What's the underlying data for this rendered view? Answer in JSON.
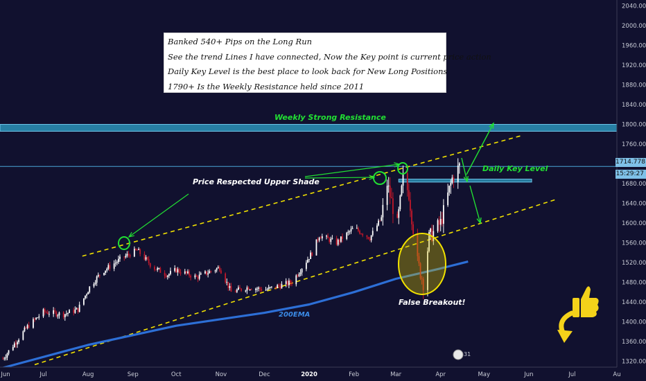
{
  "chart_data": {
    "type": "candlestick",
    "title": "",
    "y_axis": {
      "ticks": [
        1320,
        1360,
        1400,
        1440,
        1480,
        1520,
        1560,
        1600,
        1640,
        1680,
        1720,
        1760,
        1800,
        1840,
        1880,
        1920,
        1960,
        2000,
        2040
      ],
      "tick_labels": [
        "1320.000",
        "1360.000",
        "1400.000",
        "1440.000",
        "1480.000",
        "1520.000",
        "1560.000",
        "1600.000",
        "1640.000",
        "1680.000",
        "1720.000",
        "1760.000",
        "1800.000",
        "1840.000",
        "1880.000",
        "1920.000",
        "1960.000",
        "2000.000",
        "2040.000"
      ],
      "range": [
        1308,
        2052
      ],
      "position": "right"
    },
    "x_axis": {
      "labels": [
        "Jun",
        "Jul",
        "Aug",
        "Sep",
        "Oct",
        "Nov",
        "Dec",
        "2020",
        "Feb",
        "Mar",
        "Apr",
        "May",
        "Jun",
        "Jul",
        "Au"
      ],
      "label_dates": [
        "2019-06-01",
        "2019-07-01",
        "2019-08-01",
        "2019-09-01",
        "2019-10-01",
        "2019-11-01",
        "2019-12-01",
        "2020-01-01",
        "2020-02-01",
        "2020-03-01",
        "2020-04-01",
        "2020-05-01",
        "2020-06-01",
        "2020-07-01",
        "2020-08-01"
      ],
      "range": [
        "2019-06-01",
        "2020-08-01"
      ]
    },
    "price_path": {
      "dates": [
        "2019-06-03",
        "2019-06-20",
        "2019-07-01",
        "2019-07-15",
        "2019-07-25",
        "2019-08-02",
        "2019-08-10",
        "2019-08-25",
        "2019-09-04",
        "2019-09-15",
        "2019-09-25",
        "2019-10-01",
        "2019-10-15",
        "2019-10-31",
        "2019-11-08",
        "2019-11-20",
        "2019-12-02",
        "2019-12-20",
        "2020-01-03",
        "2020-01-08",
        "2020-01-20",
        "2020-02-01",
        "2020-02-12",
        "2020-02-20",
        "2020-02-24",
        "2020-03-02",
        "2020-03-06",
        "2020-03-10",
        "2020-03-16",
        "2020-03-20",
        "2020-03-24",
        "2020-04-01",
        "2020-04-09",
        "2020-04-14"
      ],
      "close": [
        1325,
        1390,
        1420,
        1415,
        1425,
        1470,
        1500,
        1530,
        1545,
        1510,
        1495,
        1505,
        1490,
        1510,
        1460,
        1470,
        1465,
        1480,
        1540,
        1575,
        1560,
        1590,
        1570,
        1610,
        1680,
        1595,
        1690,
        1660,
        1520,
        1480,
        1570,
        1600,
        1690,
        1714.778
      ]
    },
    "ema_200": {
      "name": "200EMA",
      "dates": [
        "2019-06-01",
        "2019-08-01",
        "2019-10-01",
        "2019-12-01",
        "2020-01-01",
        "2020-02-01",
        "2020-03-01",
        "2020-04-01",
        "2020-04-20"
      ],
      "values": [
        1305,
        1353,
        1392,
        1418,
        1435,
        1460,
        1487,
        1508,
        1522
      ]
    },
    "channel": {
      "upper": {
        "from": [
          "2019-07-28",
          1533
        ],
        "to": [
          "2020-05-28",
          1778
        ]
      },
      "lower": {
        "from": [
          "2019-06-25",
          1313
        ],
        "to": [
          "2020-06-20",
          1648
        ]
      }
    },
    "zones": [
      {
        "label": "Weekly Strong Resistance",
        "y_low": 1786,
        "y_high": 1800,
        "color": "#2b93b8"
      },
      {
        "label": "Daily Key Level",
        "y_low": 1683,
        "y_high": 1689,
        "date_from": "2020-03-03",
        "date_to": "2020-06-03",
        "color": "#2b93b8"
      }
    ],
    "current_price": {
      "value": "1714.778",
      "countdown": "15:29:27"
    },
    "annotations": {
      "resistance": "Weekly Strong Resistance",
      "upper_shade": "Price Respected Upper Shade",
      "key_level": "Daily Key Level",
      "false_breakout": "False Breakout!",
      "ema": "200EMA"
    },
    "notes": [
      "Banked 540+ Pips on the Long Run",
      "See the trend Lines I have connected, Now the Key point is current price action",
      "Daily Key Level is the best place to look back for  New Long Positions",
      "1790+ Is the Weekly Resistance held since 2011"
    ],
    "badge_count": "31",
    "grid": false
  },
  "colors": {
    "background": "#11112f",
    "candle_up": "#ffffff",
    "candle_down": "#c0182a",
    "trend_line": "#f2e200",
    "ema": "#2d6fd6",
    "zone": "#2b93b8",
    "green_annotation": "#22e033",
    "axis_text": "#c9ccd6"
  }
}
